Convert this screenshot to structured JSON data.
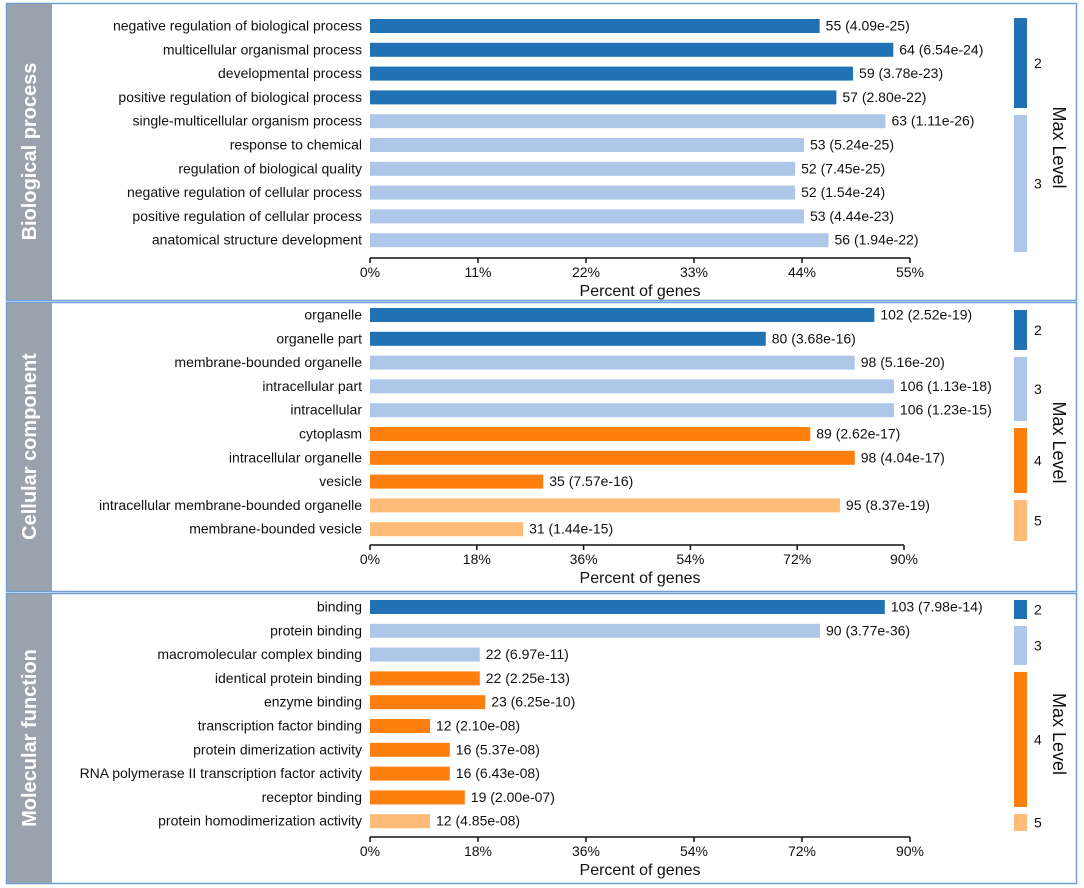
{
  "legend_title": "Max Level",
  "colors": {
    "2": "#2171b5",
    "3": "#aec7e8",
    "4": "#ff7f0e",
    "5": "#ffbb78",
    "side_panel": "#9aa3ad",
    "frame": "#6f9fd8",
    "axis": "#111111"
  },
  "chart_data": [
    {
      "type": "bar",
      "orientation": "horizontal",
      "section": "Biological process",
      "xlabel": "Percent of genes",
      "xlim": [
        0,
        55
      ],
      "xticks": [
        "0%",
        "11%",
        "22%",
        "33%",
        "44%",
        "55%"
      ],
      "categories": [
        "negative regulation of biological process",
        "multicellular organismal process",
        "developmental process",
        "positive regulation of biological process",
        "single-multicellular organism process",
        "response to chemical",
        "regulation of biological quality",
        "negative regulation of cellular process",
        "positive regulation of cellular process",
        "anatomical structure development"
      ],
      "values": [
        45.8,
        53.3,
        49.2,
        47.5,
        52.5,
        44.2,
        43.3,
        43.3,
        44.2,
        46.7
      ],
      "labels": [
        "55 (4.09e-25)",
        "64 (6.54e-24)",
        "59 (3.78e-23)",
        "57 (2.80e-22)",
        "63 (1.11e-26)",
        "53 (5.24e-25)",
        "52 (7.45e-25)",
        "52 (1.54e-24)",
        "53 (4.44e-23)",
        "56 (1.94e-22)"
      ],
      "levels": [
        2,
        2,
        2,
        2,
        3,
        3,
        3,
        3,
        3,
        3
      ],
      "legend_levels": [
        "2",
        "3"
      ]
    },
    {
      "type": "bar",
      "orientation": "horizontal",
      "section": "Cellular component",
      "xlabel": "Percent of genes",
      "xlim": [
        0,
        90
      ],
      "xticks": [
        "0%",
        "18%",
        "36%",
        "54%",
        "72%",
        "90%"
      ],
      "categories": [
        "organelle",
        "organelle part",
        "membrane-bounded organelle",
        "intracellular part",
        "intracellular",
        "cytoplasm",
        "intracellular organelle",
        "vesicle",
        "intracellular membrane-bounded organelle",
        "membrane-bounded vesicle"
      ],
      "values": [
        85.0,
        66.7,
        81.7,
        88.3,
        88.3,
        74.2,
        81.7,
        29.2,
        79.2,
        25.8
      ],
      "labels": [
        "102 (2.52e-19)",
        "80 (3.68e-16)",
        "98 (5.16e-20)",
        "106 (1.13e-18)",
        "106 (1.23e-15)",
        "89 (2.62e-17)",
        "98 (4.04e-17)",
        "35 (7.57e-16)",
        "95 (8.37e-19)",
        "31 (1.44e-15)"
      ],
      "levels": [
        2,
        2,
        3,
        3,
        3,
        4,
        4,
        4,
        5,
        5
      ],
      "legend_levels": [
        "2",
        "3",
        "4",
        "5"
      ]
    },
    {
      "type": "bar",
      "orientation": "horizontal",
      "section": "Molecular function",
      "xlabel": "Percent of genes",
      "xlim": [
        0,
        90
      ],
      "xticks": [
        "0%",
        "18%",
        "36%",
        "54%",
        "72%",
        "90%"
      ],
      "categories": [
        "binding",
        "protein binding",
        "macromolecular complex binding",
        "identical protein binding",
        "enzyme binding",
        "transcription factor binding",
        "protein dimerization activity",
        "RNA polymerase II transcription factor activity",
        "receptor binding",
        "protein homodimerization activity"
      ],
      "values": [
        85.8,
        75.0,
        18.3,
        18.3,
        19.2,
        10.0,
        13.3,
        13.3,
        15.8,
        10.0
      ],
      "labels": [
        "103 (7.98e-14)",
        "90 (3.77e-36)",
        "22 (6.97e-11)",
        "22 (2.25e-13)",
        "23 (6.25e-10)",
        "12 (2.10e-08)",
        "16 (5.37e-08)",
        "16 (6.43e-08)",
        "19 (2.00e-07)",
        "12 (4.85e-08)"
      ],
      "levels": [
        2,
        3,
        3,
        4,
        4,
        4,
        4,
        4,
        4,
        5
      ],
      "legend_levels": [
        "2",
        "3",
        "4",
        "5"
      ]
    }
  ]
}
